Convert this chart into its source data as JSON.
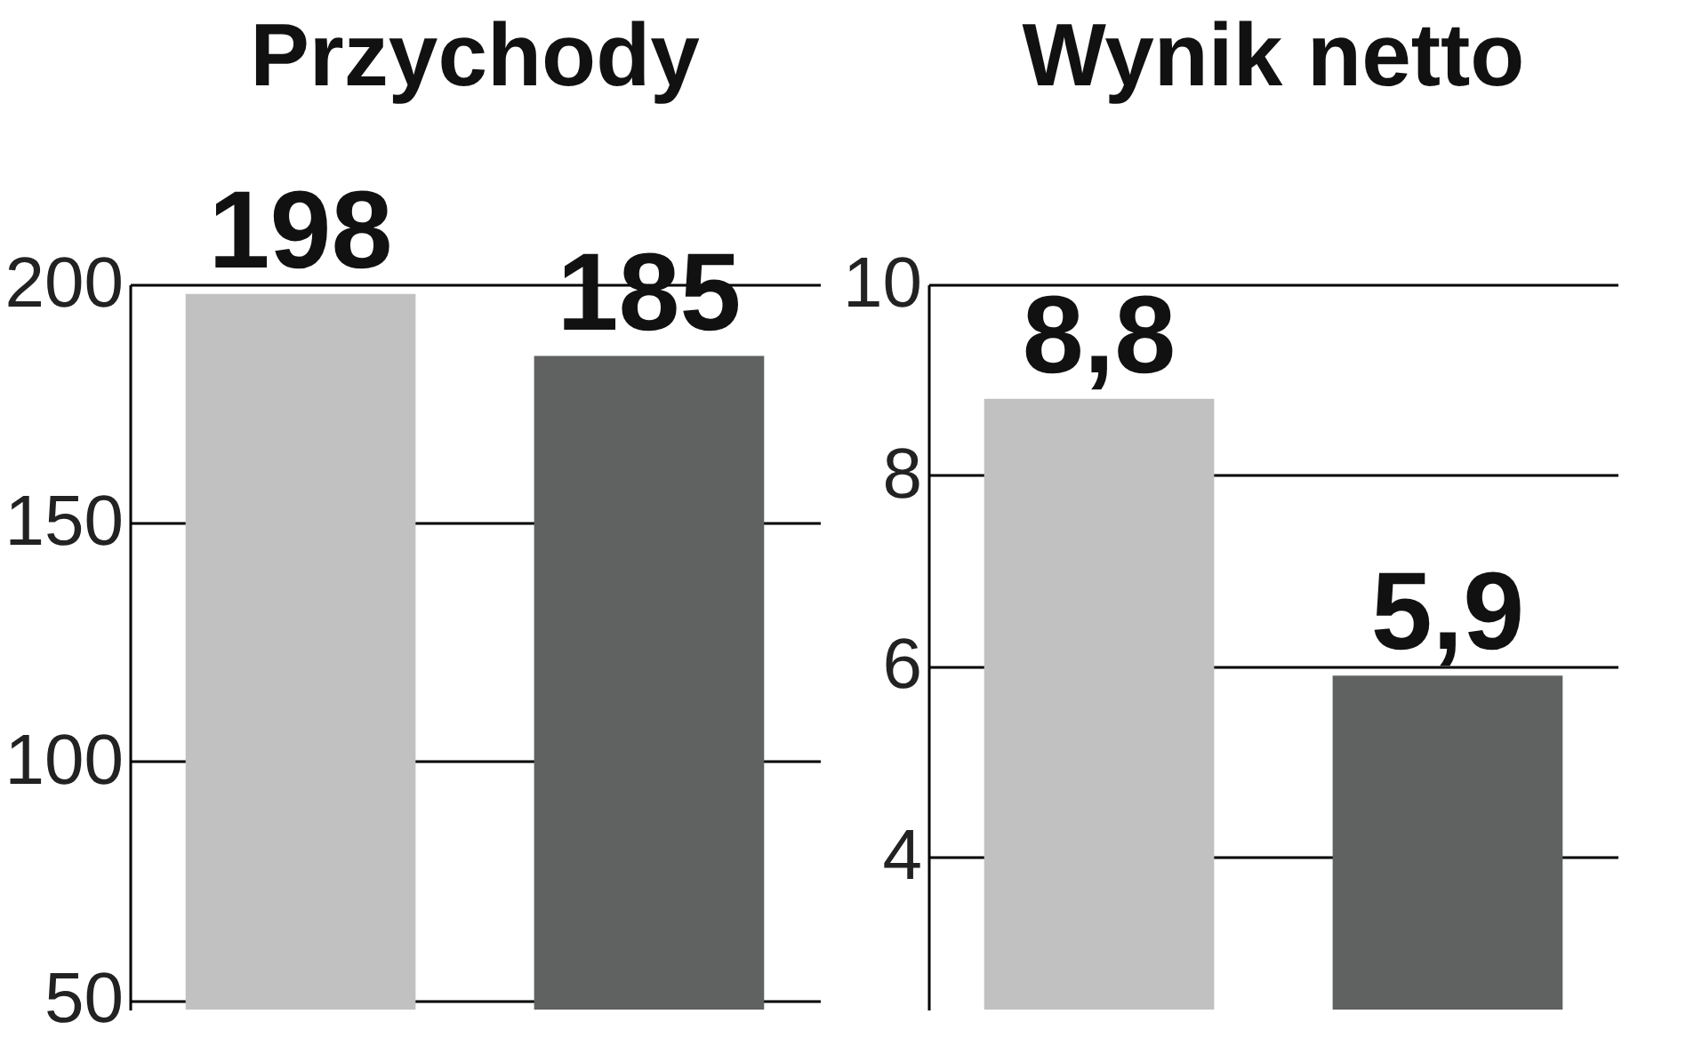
{
  "chart_data": [
    {
      "type": "bar",
      "title": "Przychody",
      "categories": [
        null,
        null
      ],
      "colors": [
        "#c0c1c0",
        "#606261"
      ],
      "values": [
        198,
        185
      ],
      "ylim": [
        48,
        200
      ],
      "yticks": [
        50,
        100,
        150,
        200
      ],
      "grid": "y",
      "tick_labels": "y",
      "data_labels": true
    },
    {
      "type": "bar",
      "title": "Wynik netto",
      "categories": [
        null,
        null
      ],
      "colors": [
        "#c0c1c0",
        "#606261"
      ],
      "values": [
        8.8,
        5.9
      ],
      "value_labels": [
        "8,8",
        "5,9"
      ],
      "ylim": [
        2.4,
        10
      ],
      "yticks": [
        4,
        6,
        8,
        10
      ],
      "grid": "y",
      "tick_labels": "y"
    }
  ]
}
